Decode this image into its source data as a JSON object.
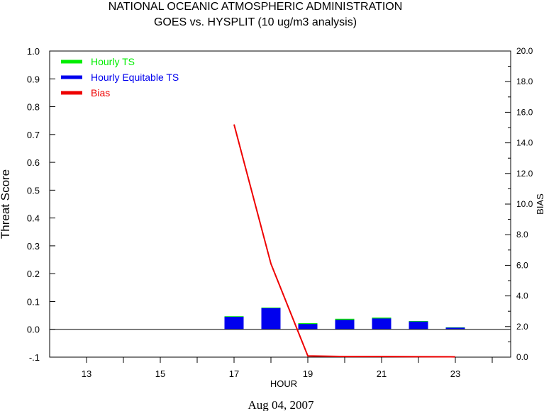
{
  "title_line1": "NATIONAL OCEANIC ATMOSPHERIC ADMINISTRATION",
  "title_line2": "GOES vs. HYSPLIT  (10 ug/m3 analysis)",
  "date_label": "Aug 04, 2007",
  "chart_data": {
    "type": "bar",
    "xlabel": "HOUR",
    "ylabel": "Threat Score",
    "y2label": "BIAS",
    "xlim": [
      12,
      24.5
    ],
    "ylim": [
      -0.1,
      1.0
    ],
    "y2lim": [
      0.0,
      20.0
    ],
    "x_ticks": [
      13,
      14,
      15,
      16,
      17,
      18,
      19,
      20,
      21,
      22,
      23,
      24
    ],
    "x_tick_labels": [
      "13",
      "15",
      "17",
      "19",
      "21",
      "23"
    ],
    "x_tick_label_values": [
      13,
      15,
      17,
      19,
      21,
      23
    ],
    "y_ticks": [
      "-.1",
      "0.0",
      "0.1",
      "0.2",
      "0.3",
      "0.4",
      "0.5",
      "0.6",
      "0.7",
      "0.8",
      "0.9",
      "1.0"
    ],
    "y_tick_values": [
      -0.1,
      0.0,
      0.1,
      0.2,
      0.3,
      0.4,
      0.5,
      0.6,
      0.7,
      0.8,
      0.9,
      1.0
    ],
    "y2_ticks": [
      "0.0",
      "2.0",
      "4.0",
      "6.0",
      "8.0",
      "10.0",
      "12.0",
      "14.0",
      "16.0",
      "18.0",
      "20.0"
    ],
    "y2_tick_values": [
      0,
      2,
      4,
      6,
      8,
      10,
      12,
      14,
      16,
      18,
      20
    ],
    "legend": [
      {
        "label": "Hourly TS",
        "color": "#00ee00"
      },
      {
        "label": "Hourly Equitable TS",
        "color": "#0000ee"
      },
      {
        "label": "Bias",
        "color": "#ee0000"
      }
    ],
    "series": [
      {
        "name": "Hourly TS",
        "color": "#00ee00",
        "x": [
          17,
          18,
          19,
          20,
          21,
          22,
          23
        ],
        "values": [
          0.047,
          0.078,
          0.022,
          0.038,
          0.042,
          0.03,
          0.007
        ]
      },
      {
        "name": "Hourly Equitable TS",
        "color": "#0000ee",
        "x": [
          17,
          18,
          19,
          20,
          21,
          22,
          23
        ],
        "values": [
          0.045,
          0.076,
          0.019,
          0.034,
          0.039,
          0.028,
          0.006
        ]
      },
      {
        "name": "Bias",
        "color": "#ee0000",
        "axis": "right",
        "x": [
          17,
          18,
          19,
          20,
          21,
          22,
          23
        ],
        "values": [
          15.2,
          6.1,
          0.08,
          0.04,
          0.04,
          0.03,
          0.02
        ]
      }
    ]
  }
}
